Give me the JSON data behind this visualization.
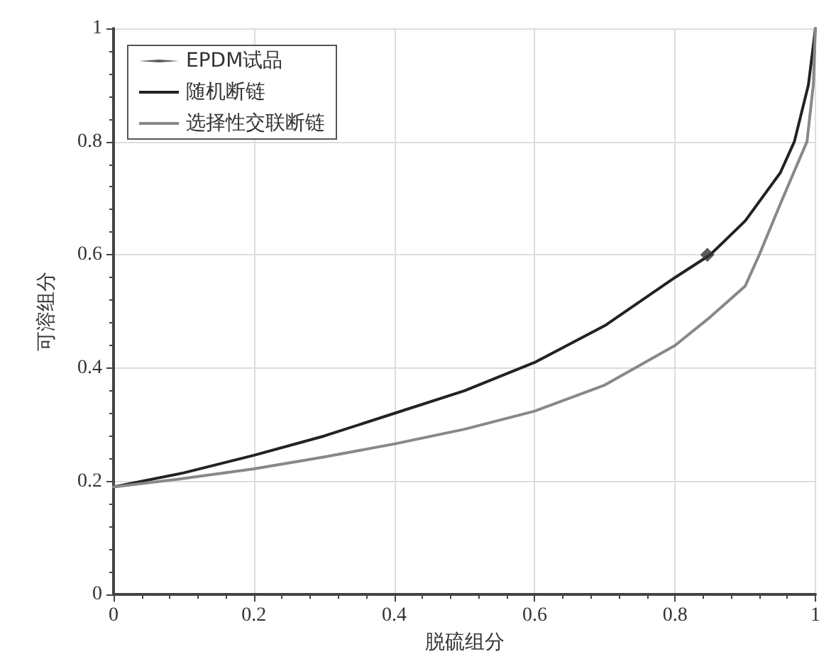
{
  "chart_data": {
    "type": "line",
    "xlabel": "脱硫组分",
    "ylabel": "可溶组分",
    "xlim": [
      0,
      1
    ],
    "ylim": [
      0,
      1
    ],
    "xticks": [
      0,
      0.2,
      0.4,
      0.6,
      0.8,
      1
    ],
    "yticks": [
      0,
      0.2,
      0.4,
      0.6,
      0.8,
      1
    ],
    "grid": true,
    "legend": "top left",
    "line_style": "solid",
    "series": [
      {
        "name": "EPDM试品",
        "type": "scatter",
        "marker": "diamond",
        "color": "#333333",
        "x": [
          0.846
        ],
        "values": [
          0.6
        ]
      },
      {
        "name": "随机断链",
        "marker": "none",
        "color": "#222222",
        "x": [
          0,
          0.1,
          0.2,
          0.3,
          0.4,
          0.5,
          0.6,
          0.7,
          0.8,
          0.85,
          0.9,
          0.95,
          0.97,
          0.99,
          1
        ],
        "values": [
          0.19,
          0.215,
          0.246,
          0.28,
          0.32,
          0.36,
          0.41,
          0.475,
          0.56,
          0.6,
          0.66,
          0.745,
          0.8,
          0.9,
          1
        ]
      },
      {
        "name": "选择性交联断链",
        "marker": "none",
        "color": "#888888",
        "x": [
          0,
          0.1,
          0.2,
          0.3,
          0.4,
          0.5,
          0.6,
          0.7,
          0.8,
          0.85,
          0.9,
          0.92,
          0.95,
          0.988,
          0.997,
          1
        ],
        "values": [
          0.19,
          0.205,
          0.222,
          0.243,
          0.266,
          0.292,
          0.324,
          0.37,
          0.44,
          0.49,
          0.545,
          0.6,
          0.69,
          0.8,
          0.9,
          1
        ]
      }
    ]
  }
}
